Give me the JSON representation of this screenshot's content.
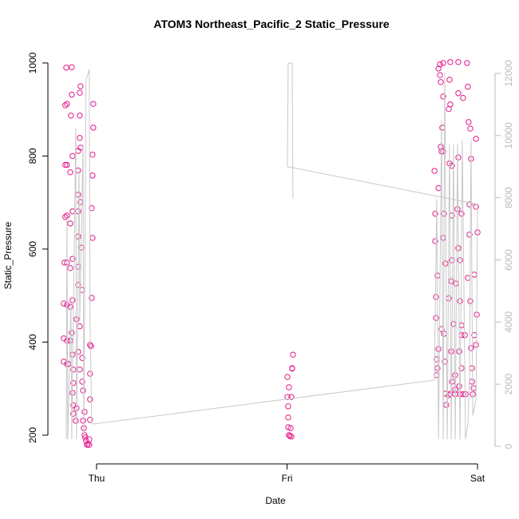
{
  "chart_data": {
    "type": "scatter",
    "title": "ATOM3 Northeast_Pacific_2 Static_Pressure",
    "xlabel": "Date",
    "ylabel": "Static_Pressure",
    "xlim": [
      -0.205,
      2.071
    ],
    "xticks": [
      {
        "value": 0,
        "label": "Thu"
      },
      {
        "value": 1,
        "label": "Fri"
      },
      {
        "value": 2,
        "label": "Sat"
      }
    ],
    "ylim": [
      145,
      1029
    ],
    "yticks": [
      200,
      400,
      600,
      800,
      1000
    ],
    "y2lim": [
      -462,
      12769
    ],
    "y2ticks": [
      0,
      2000,
      4000,
      6000,
      8000,
      10000,
      12000
    ],
    "series": [
      {
        "color": "#e6198c",
        "x": [
          -0.159,
          -0.13,
          -0.164,
          -0.155,
          -0.13,
          -0.084,
          -0.088,
          -0.017,
          -0.134,
          -0.088,
          -0.017,
          -0.088,
          -0.084,
          -0.096,
          -0.021,
          -0.126,
          -0.164,
          -0.155,
          -0.096,
          -0.138,
          -0.021,
          -0.096,
          -0.084,
          -0.025,
          -0.126,
          -0.096,
          -0.164,
          -0.155,
          -0.138,
          -0.096,
          -0.021,
          -0.08,
          -0.126,
          -0.168,
          -0.155,
          -0.096,
          -0.138,
          -0.096,
          -0.075,
          -0.025,
          -0.126,
          -0.172,
          -0.155,
          -0.138,
          -0.105,
          -0.088,
          -0.13,
          -0.172,
          -0.155,
          -0.138,
          -0.034,
          -0.096,
          -0.029,
          -0.126,
          -0.075,
          -0.172,
          -0.155,
          -0.147,
          -0.088,
          -0.122,
          -0.034,
          -0.075,
          -0.122,
          -0.126,
          -0.071,
          -0.034,
          -0.122,
          -0.105,
          -0.063,
          -0.122,
          -0.071,
          -0.109,
          -0.034,
          -0.067,
          -0.063,
          -0.059,
          -0.038,
          -0.055,
          -0.046,
          -0.038,
          -0.05,
          1.002,
          1.01,
          1.002,
          1.027,
          1.031,
          1.023,
          1.027,
          1.006,
          1.006,
          1.006,
          1.019,
          1.015,
          1.023,
          1.01,
          1.774,
          1.778,
          1.778,
          1.79,
          1.782,
          1.782,
          1.795,
          1.786,
          1.79,
          1.786,
          1.795,
          1.803,
          1.82,
          1.803,
          1.807,
          1.82,
          1.807,
          1.811,
          1.82,
          1.815,
          1.795,
          1.824,
          1.82,
          1.832,
          1.811,
          1.824,
          1.828,
          1.832,
          1.836,
          1.849,
          1.857,
          1.899,
          1.945,
          1.853,
          1.857,
          1.849,
          1.899,
          1.924,
          1.949,
          1.953,
          1.962,
          1.853,
          1.866,
          1.899,
          1.966,
          1.992,
          1.866,
          1.895,
          1.916,
          1.958,
          1.992,
          1.899,
          1.908,
          1.866,
          1.958,
          2.0,
          1.862,
          1.887,
          1.849,
          1.908,
          1.949,
          1.983,
          1.874,
          1.916,
          1.933,
          1.962,
          1.983,
          1.996,
          1.862,
          1.916,
          1.904,
          1.966,
          1.992,
          1.883,
          1.916,
          1.971,
          1.866,
          1.904,
          1.971,
          1.857,
          1.883,
          1.908,
          1.924,
          1.937,
          1.975,
          1.979,
          1.883
        ],
        "values": [
          990,
          991,
          909,
          912,
          932,
          950,
          936,
          912,
          887,
          887,
          861,
          839,
          818,
          811,
          803,
          800,
          781,
          781,
          769,
          765,
          758,
          717,
          701,
          688,
          681,
          681,
          669,
          672,
          655,
          627,
          624,
          603,
          579,
          571,
          571,
          562,
          559,
          523,
          512,
          495,
          490,
          483,
          480,
          476,
          449,
          434,
          420,
          408,
          403,
          403,
          394,
          379,
          391,
          373,
          366,
          358,
          353,
          353,
          341,
          341,
          332,
          315,
          312,
          291,
          296,
          277,
          264,
          258,
          250,
          246,
          231,
          231,
          233,
          215,
          200,
          195,
          191,
          188,
          181,
          179,
          179,
          325,
          303,
          282,
          343,
          373,
          282,
          344,
          262,
          238,
          217,
          215,
          198,
          197,
          200,
          768,
          676,
          617,
          543,
          497,
          452,
          385,
          363,
          344,
          329,
          988,
          997,
          1000,
          974,
          959,
          928,
          820,
          810,
          810,
          861,
          731,
          676,
          624,
          569,
          428,
          418,
          358,
          289,
          265,
          286,
          1002,
          1002,
          1000,
          964,
          911,
          901,
          935,
          925,
          949,
          873,
          859,
          784,
          779,
          797,
          794,
          837,
          672,
          686,
          676,
          696,
          691,
          602,
          576,
          576,
          631,
          636,
          531,
          526,
          494,
          488,
          538,
          545,
          439,
          436,
          415,
          488,
          415,
          459,
          380,
          415,
          380,
          387,
          394,
          329,
          344,
          344,
          315,
          305,
          315,
          289,
          288,
          288,
          288,
          288,
          288,
          301,
          298
        ]
      },
      {
        "color": "#c8c8c8",
        "axis": "y2",
        "x": [
          -0.159,
          -0.155,
          -0.151,
          -0.134,
          -0.13,
          -0.109,
          -0.105,
          -0.092,
          -0.088,
          -0.071,
          -0.067,
          -0.055,
          -0.038,
          -0.034,
          -0.025,
          -0.017,
          1.774,
          1.786,
          1.795,
          1.811,
          1.82,
          1.828,
          1.841,
          1.853,
          1.862,
          1.874,
          1.883,
          1.895,
          1.908,
          1.92,
          1.937,
          1.95,
          1.958,
          1.966,
          1.975,
          1.992,
          2.0,
          1.002,
          1.006,
          1.027,
          1.031
        ],
        "values": [
          230,
          7410,
          230,
          4590,
          230,
          10230,
          230,
          8950,
          4080,
          9720,
          230,
          11770,
          12130,
          4080,
          740,
          720,
          2130,
          7970,
          230,
          10490,
          230,
          12030,
          230,
          9720,
          230,
          9720,
          230,
          9720,
          230,
          9850,
          230,
          740,
          2150,
          9850,
          1000,
          1510,
          7790,
          9000,
          12330,
          12330,
          7970
        ]
      }
    ]
  }
}
